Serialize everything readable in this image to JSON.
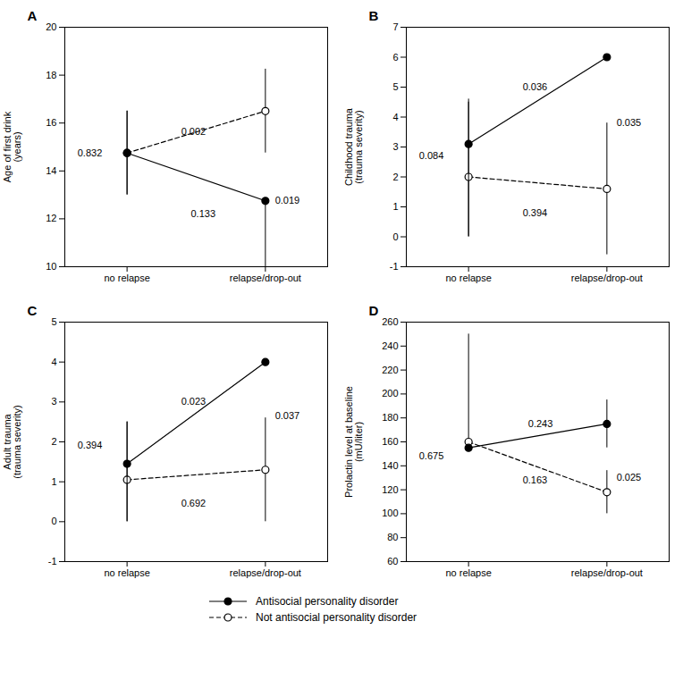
{
  "chart_data": [
    {
      "type": "line",
      "title": "A",
      "y_label": "Age of first drink\n(years)",
      "x": [
        0,
        1
      ],
      "xlim": [
        -0.45,
        1.45
      ],
      "xticks": [
        {
          "value": 0,
          "label": "no relapse"
        },
        {
          "value": 1,
          "label": "relapse/drop-out"
        }
      ],
      "ylim": [
        10,
        20
      ],
      "yticks": [
        10,
        12,
        14,
        16,
        18,
        20
      ],
      "grid": false,
      "legend": "bottom",
      "series": [
        {
          "name": "Antisocial personality disorder",
          "color": "black",
          "marker": "filled_circle",
          "line_style": "solid",
          "values": [
            14.75,
            12.75
          ],
          "error_low": [
            1.75,
            2.75
          ],
          "error_high": [
            1.75,
            0.0
          ]
        },
        {
          "name": "Not antisocial personality disorder",
          "color": "black",
          "marker": "open_circle",
          "line_style": "dashed",
          "values": [
            14.75,
            16.5
          ],
          "error_low": [
            1.75,
            1.75
          ],
          "error_high": [
            1.75,
            1.75
          ]
        }
      ],
      "annotations": [
        {
          "text": "0.832",
          "x": -0.18,
          "y": 14.75
        },
        {
          "text": "0.133",
          "x": 0.55,
          "y": 12.2
        },
        {
          "text": "0.019",
          "x": 1.07,
          "y": 12.75
        },
        {
          "text": "0.002",
          "x": 0.48,
          "y": 15.65
        }
      ]
    },
    {
      "type": "line",
      "title": "B",
      "y_label": "Childhood trauma\n(trauma severity)",
      "x": [
        0,
        1
      ],
      "xlim": [
        -0.45,
        1.45
      ],
      "xticks": [
        {
          "value": 0,
          "label": "no relapse"
        },
        {
          "value": 1,
          "label": "relapse/drop-out"
        }
      ],
      "ylim": [
        -1,
        7
      ],
      "yticks": [
        -1,
        0,
        1,
        2,
        3,
        4,
        5,
        6,
        7
      ],
      "grid": false,
      "legend": "bottom",
      "series": [
        {
          "name": "Antisocial personality disorder",
          "color": "black",
          "marker": "filled_circle",
          "line_style": "solid",
          "values": [
            3.1,
            6.0
          ],
          "error_low": [
            3.1,
            0.0
          ],
          "error_high": [
            1.5,
            0.0
          ]
        },
        {
          "name": "Not antisocial personality disorder",
          "color": "black",
          "marker": "open_circle",
          "line_style": "dashed",
          "values": [
            2.0,
            1.6
          ],
          "error_low": [
            2.0,
            2.2
          ],
          "error_high": [
            2.5,
            2.2
          ]
        }
      ],
      "annotations": [
        {
          "text": "0.084",
          "x": -0.18,
          "y": 2.7
        },
        {
          "text": "0.036",
          "x": 0.48,
          "y": 5.0
        },
        {
          "text": "0.035",
          "x": 1.07,
          "y": 3.8
        },
        {
          "text": "0.394",
          "x": 0.48,
          "y": 0.8
        }
      ]
    },
    {
      "type": "line",
      "title": "C",
      "y_label": "Adult trauma\n(trauma severity)",
      "x": [
        0,
        1
      ],
      "xlim": [
        -0.45,
        1.45
      ],
      "xticks": [
        {
          "value": 0,
          "label": "no relapse"
        },
        {
          "value": 1,
          "label": "relapse/drop-out"
        }
      ],
      "ylim": [
        -1,
        5
      ],
      "yticks": [
        -1,
        0,
        1,
        2,
        3,
        4,
        5
      ],
      "grid": false,
      "legend": "bottom",
      "series": [
        {
          "name": "Antisocial personality disorder",
          "color": "black",
          "marker": "filled_circle",
          "line_style": "solid",
          "values": [
            1.45,
            4.0
          ],
          "error_low": [
            1.45,
            0.0
          ],
          "error_high": [
            1.05,
            0.0
          ]
        },
        {
          "name": "Not antisocial personality disorder",
          "color": "black",
          "marker": "open_circle",
          "line_style": "dashed",
          "values": [
            1.05,
            1.3
          ],
          "error_low": [
            1.05,
            1.3
          ],
          "error_high": [
            1.45,
            1.3
          ]
        }
      ],
      "annotations": [
        {
          "text": "0.394",
          "x": -0.18,
          "y": 1.9
        },
        {
          "text": "0.023",
          "x": 0.48,
          "y": 3.0
        },
        {
          "text": "0.037",
          "x": 1.07,
          "y": 2.65
        },
        {
          "text": "0.692",
          "x": 0.48,
          "y": 0.45
        }
      ]
    },
    {
      "type": "line",
      "title": "D",
      "y_label": "Prolactin level at baseline\n(mU/liter)",
      "x": [
        0,
        1
      ],
      "xlim": [
        -0.45,
        1.45
      ],
      "xticks": [
        {
          "value": 0,
          "label": "no relapse"
        },
        {
          "value": 1,
          "label": "relapse/drop-out"
        }
      ],
      "ylim": [
        60,
        260
      ],
      "yticks": [
        60,
        80,
        100,
        120,
        140,
        160,
        180,
        200,
        220,
        240,
        260
      ],
      "grid": false,
      "legend": "bottom",
      "series": [
        {
          "name": "Antisocial personality disorder",
          "color": "black",
          "marker": "filled_circle",
          "line_style": "solid",
          "values": [
            155,
            175
          ],
          "error_low": [
            0.0,
            20.0
          ],
          "error_high": [
            0.0,
            20.0
          ]
        },
        {
          "name": "Not antisocial personality disorder",
          "color": "black",
          "marker": "open_circle",
          "line_style": "dashed",
          "values": [
            160,
            118
          ],
          "error_low": [
            0.0,
            18.0
          ],
          "error_high": [
            90.0,
            18.0
          ]
        }
      ],
      "annotations": [
        {
          "text": "0.675",
          "x": -0.18,
          "y": 148
        },
        {
          "text": "0.243",
          "x": 0.52,
          "y": 175
        },
        {
          "text": "0.025",
          "x": 1.07,
          "y": 130
        },
        {
          "text": "0.163",
          "x": 0.48,
          "y": 128
        }
      ]
    }
  ]
}
